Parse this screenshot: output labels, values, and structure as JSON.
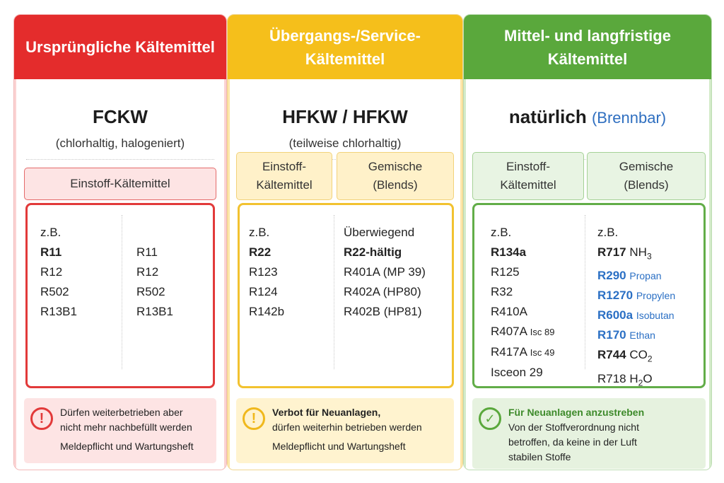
{
  "columns": [
    {
      "header": "Ursprüngliche Kältemittel",
      "category": "FCKW",
      "subtitle": "(chlorhaltig, halogeniert)",
      "pill": "Einstoff-Kältemittel",
      "list_left": {
        "prefix": "z.B.",
        "bold": "R11",
        "items": [
          "R12",
          "R502",
          "R13B1"
        ]
      },
      "list_right": {
        "items": [
          "R11",
          "R12",
          "R502",
          "R13B1"
        ]
      },
      "info_line1": "Dürfen weiterbetrieben aber",
      "info_line2": "nicht mehr nachbefüllt werden",
      "info_line3": "Meldepflicht und Wartungsheft",
      "icon": "exclamation-icon"
    },
    {
      "header": "Übergangs-/Service- Kältemittel",
      "category": "HFKW / HFKW",
      "subtitle": "(teilweise chlorhaltig)",
      "pill_left": "Einstoff- Kältemittel",
      "pill_right": "Gemische (Blends)",
      "list_left": {
        "prefix": "z.B.",
        "bold": "R22",
        "items": [
          "R123",
          "R124",
          "R142b"
        ]
      },
      "list_right": {
        "prefix": "Überwiegend",
        "bold": "R22",
        "bold_suffix": "-hältig",
        "items": [
          "R401A (MP 39)",
          "R402A (HP80)",
          "R402B (HP81)"
        ]
      },
      "info_title": "Verbot für Neuanlagen,",
      "info_line1": "dürfen weiterhin betrieben werden",
      "info_line2": "Meldepflicht und Wartungsheft",
      "icon": "exclamation-icon"
    },
    {
      "header": "Mittel- und langfristige Kältemittel",
      "category": "natürlich",
      "category_note": "(Brennbar)",
      "pill_left": "Einstoff- Kältemittel",
      "pill_right": "Gemische (Blends)",
      "list_left": {
        "prefix": "z.B.",
        "bold": "R134a",
        "items": [
          "R125",
          "R32",
          "R410A"
        ],
        "r407a": "R407A",
        "r407a_note": "Isc 89",
        "r417a": "R417A",
        "r417a_note": "Isc 49",
        "isceon": "Isceon 29"
      },
      "list_right": {
        "prefix": "z.B.",
        "r717": "R717",
        "r717_note": "NH",
        "r290": "R290",
        "r290_note": "Propan",
        "r1270": "R1270",
        "r1270_note": "Propylen",
        "r600a": "R600a",
        "r600a_note": "Isobutan",
        "r170": "R170",
        "r170_note": "Ethan",
        "r744": "R744",
        "r744_note": "CO",
        "r718": "R718",
        "r718_note_h": "H",
        "r718_note_o": "O",
        "sub3": "3",
        "sub2": "2"
      },
      "info_title": "Für Neuanlagen anzustreben",
      "info_line1": "Von der Stoffverordnung nicht",
      "info_line2": "betroffen, da keine in der Luft",
      "info_line3": "stabilen Stoffe",
      "icon": "checkmark-icon"
    }
  ],
  "colors": {
    "red": "#e42c2c",
    "yellow": "#f5bf1b",
    "green": "#5aa83c",
    "blue": "#2a6fc4"
  }
}
